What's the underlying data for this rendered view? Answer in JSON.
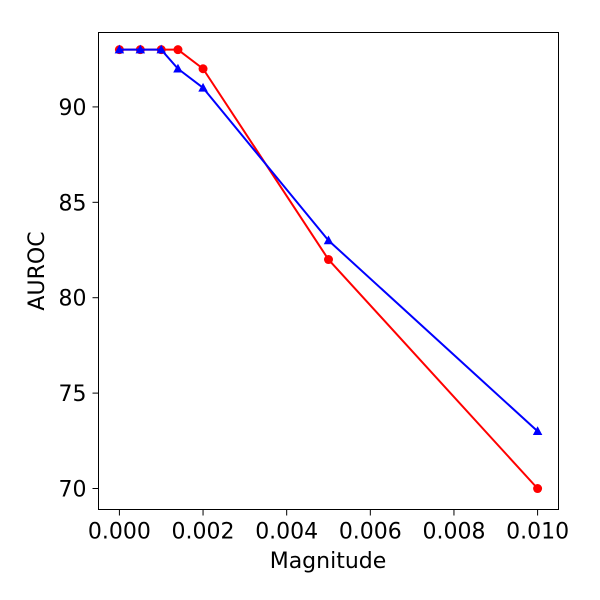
{
  "chart_data": {
    "type": "line",
    "title": "",
    "xlabel": "Magnitude",
    "ylabel": "AUROC",
    "xlim": [
      -0.0005,
      0.0105
    ],
    "ylim": [
      68.9,
      93.9
    ],
    "x_ticks": [
      0.0,
      0.002,
      0.004,
      0.006,
      0.008,
      0.01
    ],
    "x_tick_labels": [
      "0.000",
      "0.002",
      "0.004",
      "0.006",
      "0.008",
      "0.010"
    ],
    "y_ticks": [
      70,
      75,
      80,
      85,
      90
    ],
    "y_tick_labels": [
      "70",
      "75",
      "80",
      "85",
      "90"
    ],
    "grid": false,
    "legend": null,
    "series": [
      {
        "color": "#ff0000",
        "marker": "circle",
        "x": [
          0.0,
          0.0005,
          0.001,
          0.0014,
          0.002,
          0.005,
          0.01
        ],
        "y": [
          93,
          93,
          93,
          93,
          92,
          82,
          70
        ]
      },
      {
        "color": "#0000ff",
        "marker": "triangle",
        "x": [
          0.0,
          0.0005,
          0.001,
          0.0014,
          0.002,
          0.005,
          0.01
        ],
        "y": [
          93,
          93,
          93,
          92,
          91,
          83,
          73
        ]
      }
    ]
  }
}
